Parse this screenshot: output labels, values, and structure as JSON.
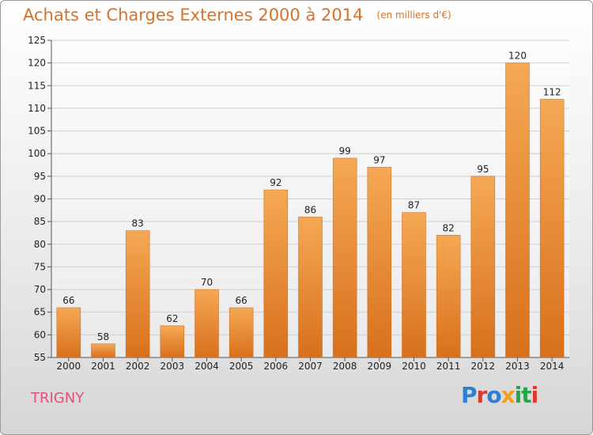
{
  "title": "Achats et Charges Externes 2000 à 2014",
  "unit": "(en milliers d'€)",
  "commune": "TRIGNY",
  "brand": "Proxiti",
  "chart_data": {
    "type": "bar",
    "categories": [
      "2000",
      "2001",
      "2002",
      "2003",
      "2004",
      "2005",
      "2006",
      "2007",
      "2008",
      "2009",
      "2010",
      "2011",
      "2012",
      "2013",
      "2014"
    ],
    "values": [
      66,
      58,
      83,
      62,
      70,
      66,
      92,
      86,
      99,
      97,
      87,
      82,
      95,
      120,
      112
    ],
    "ylim": [
      55,
      125
    ],
    "yticks": [
      55,
      60,
      65,
      70,
      75,
      80,
      85,
      90,
      95,
      100,
      105,
      110,
      115,
      120,
      125
    ],
    "grid": true,
    "bar_color": "#e8872f"
  }
}
